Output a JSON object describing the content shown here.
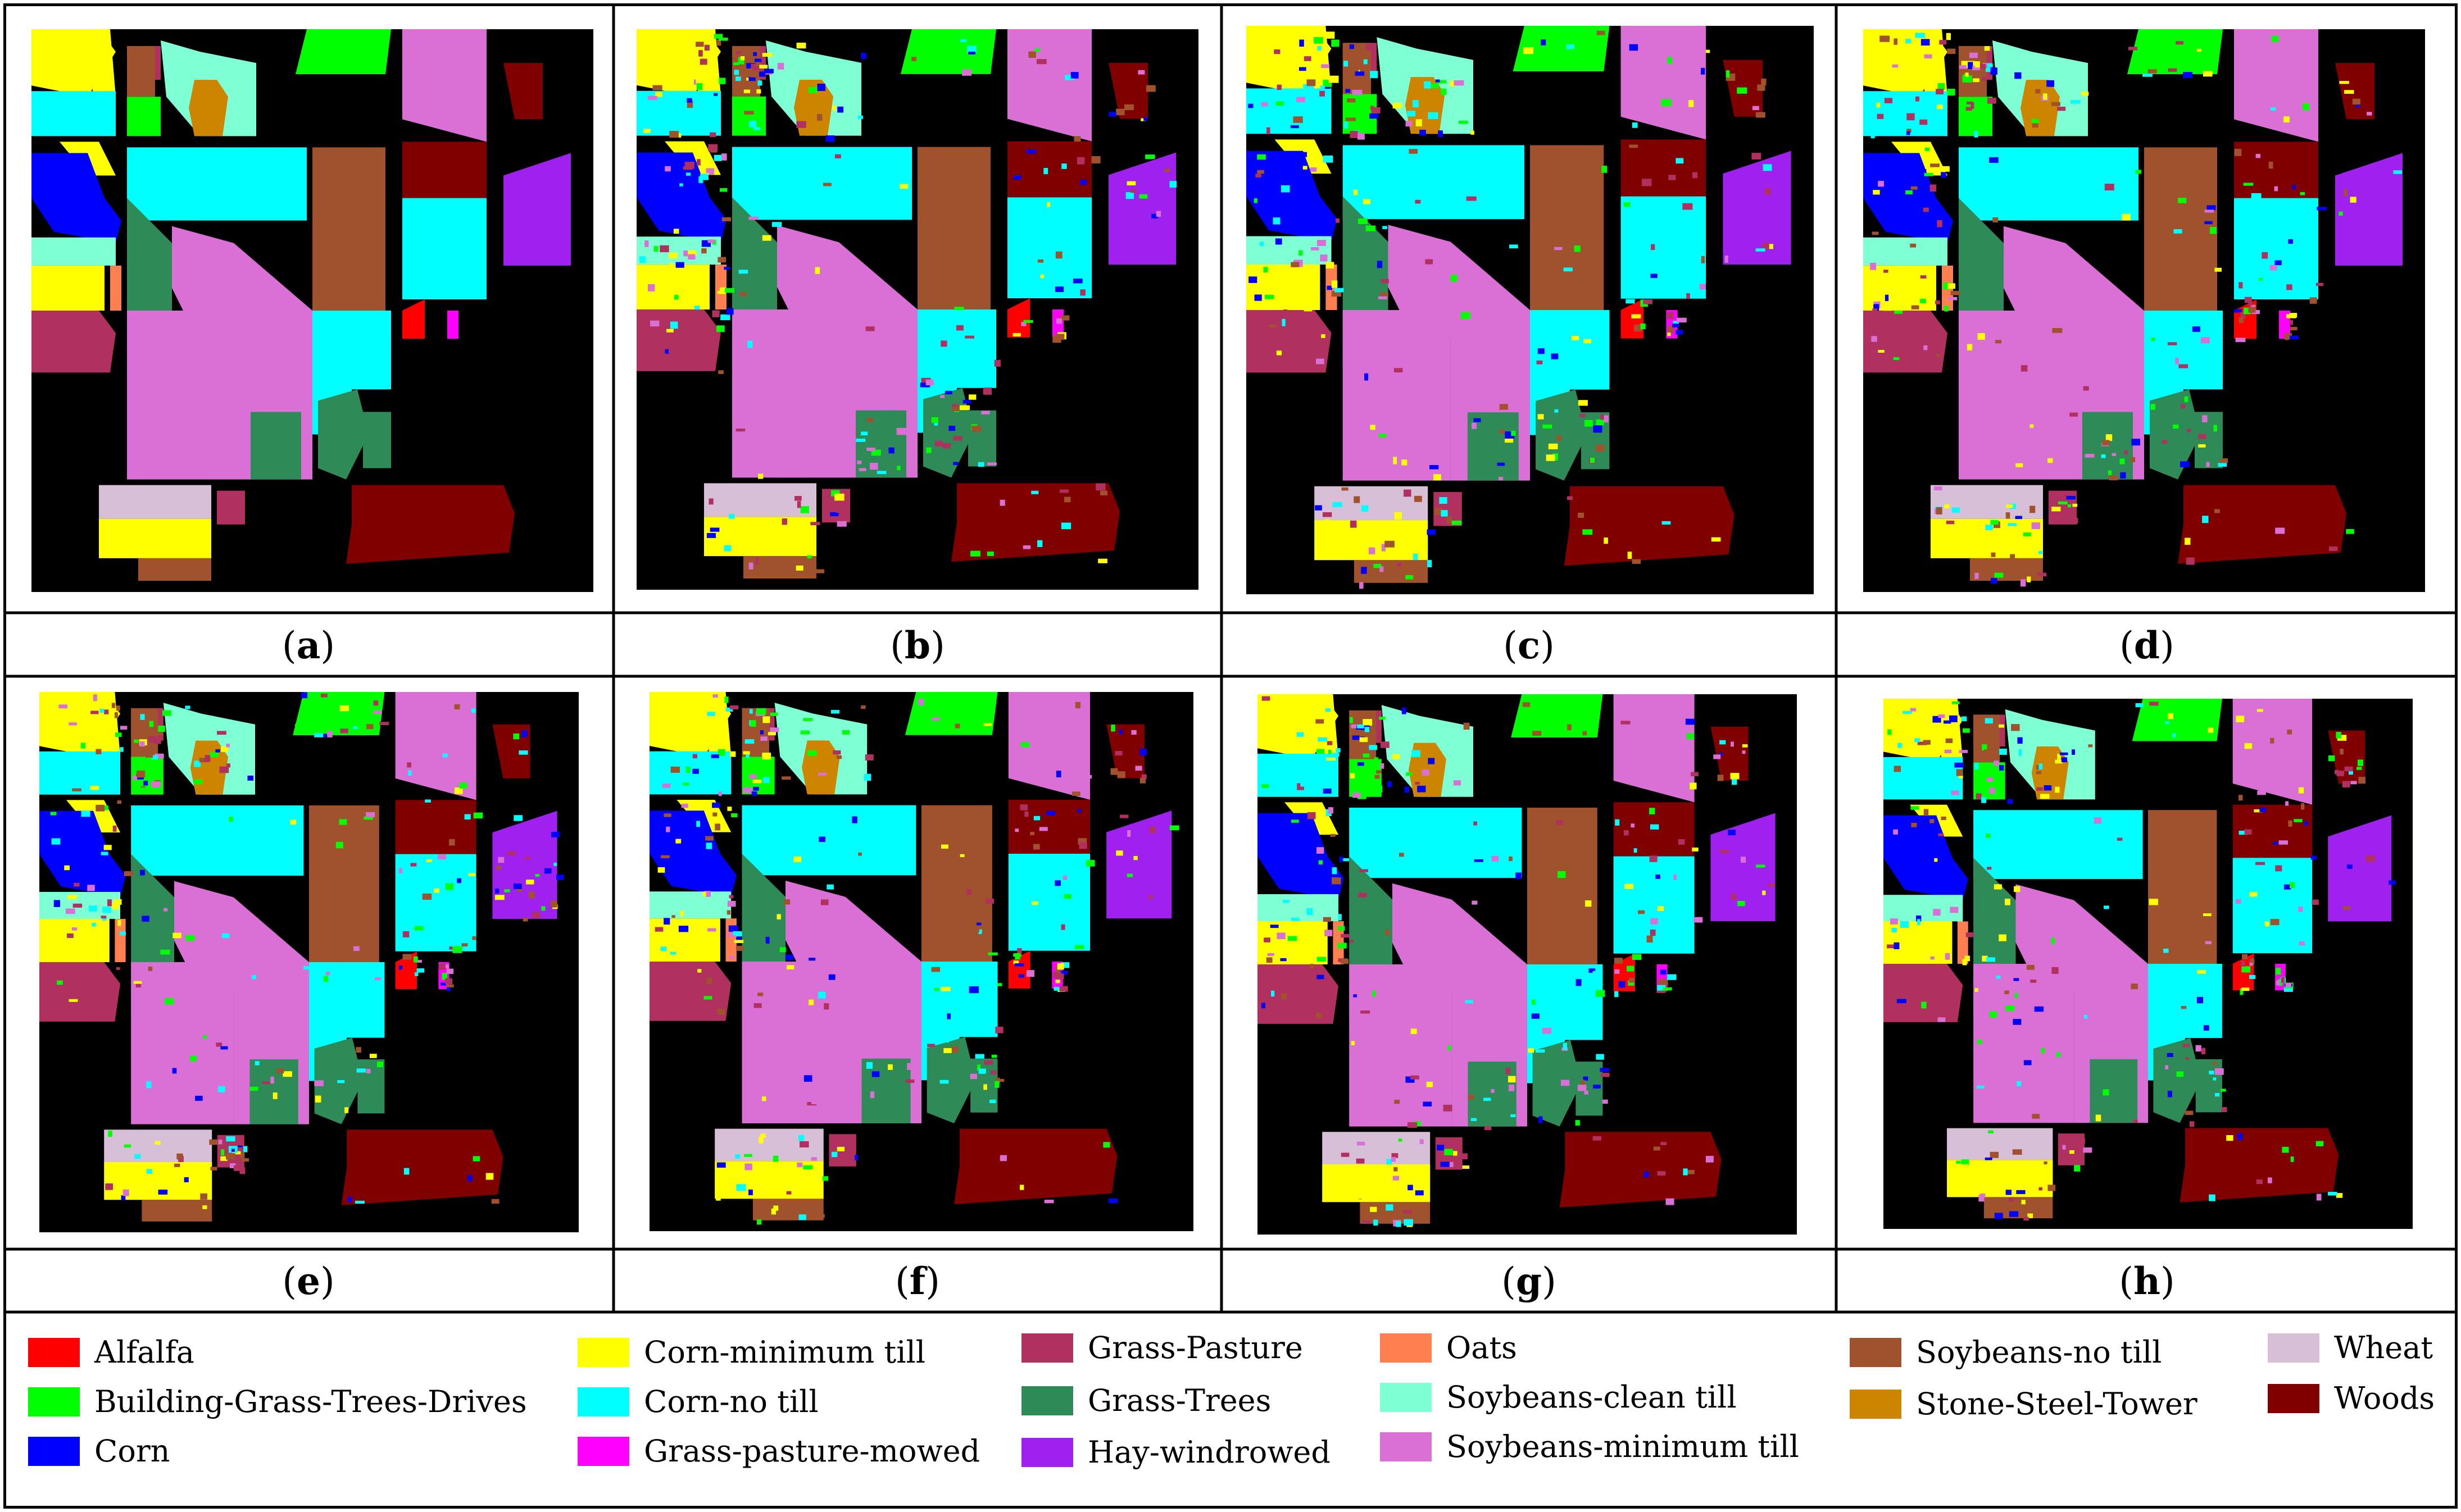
{
  "panels": [
    {
      "id": "a",
      "caption": "a",
      "paren_open": "(",
      "paren_close": ")"
    },
    {
      "id": "b",
      "caption": "b",
      "paren_open": "(",
      "paren_close": ")"
    },
    {
      "id": "c",
      "caption": "c",
      "paren_open": "(",
      "paren_close": ")"
    },
    {
      "id": "d",
      "caption": "d",
      "paren_open": "(",
      "paren_close": ")"
    },
    {
      "id": "e",
      "caption": "e",
      "paren_open": "(",
      "paren_close": ")"
    },
    {
      "id": "f",
      "caption": "f",
      "paren_open": "(",
      "paren_close": ")"
    },
    {
      "id": "g",
      "caption": "g",
      "paren_open": "(",
      "paren_close": ")"
    },
    {
      "id": "h",
      "caption": "h",
      "paren_open": "(",
      "paren_close": ")"
    }
  ],
  "legend": [
    {
      "label": "Alfalfa",
      "color": "#ff0000"
    },
    {
      "label": "Building-Grass-Trees-Drives",
      "color": "#00ff00"
    },
    {
      "label": "Corn",
      "color": "#0000ff"
    },
    {
      "label": "Corn-minimum till",
      "color": "#ffff00"
    },
    {
      "label": "Corn-no till",
      "color": "#00ffff"
    },
    {
      "label": "Grass-pasture-mowed",
      "color": "#ff00ff"
    },
    {
      "label": "Grass-Pasture",
      "color": "#b03060"
    },
    {
      "label": "Grass-Trees",
      "color": "#2e8b57"
    },
    {
      "label": "Hay-windrowed",
      "color": "#a020f0"
    },
    {
      "label": "Oats",
      "color": "#ff7f50"
    },
    {
      "label": "Soybeans-clean till",
      "color": "#7fffd4"
    },
    {
      "label": "Soybeans-minimum till",
      "color": "#da70d6"
    },
    {
      "label": "Soybeans-no till",
      "color": "#a0522d"
    },
    {
      "label": "Stone-Steel-Tower",
      "color": "#cd8500"
    },
    {
      "label": "Wheat",
      "color": "#d8bfd8"
    },
    {
      "label": "Woods",
      "color": "#800000"
    }
  ]
}
